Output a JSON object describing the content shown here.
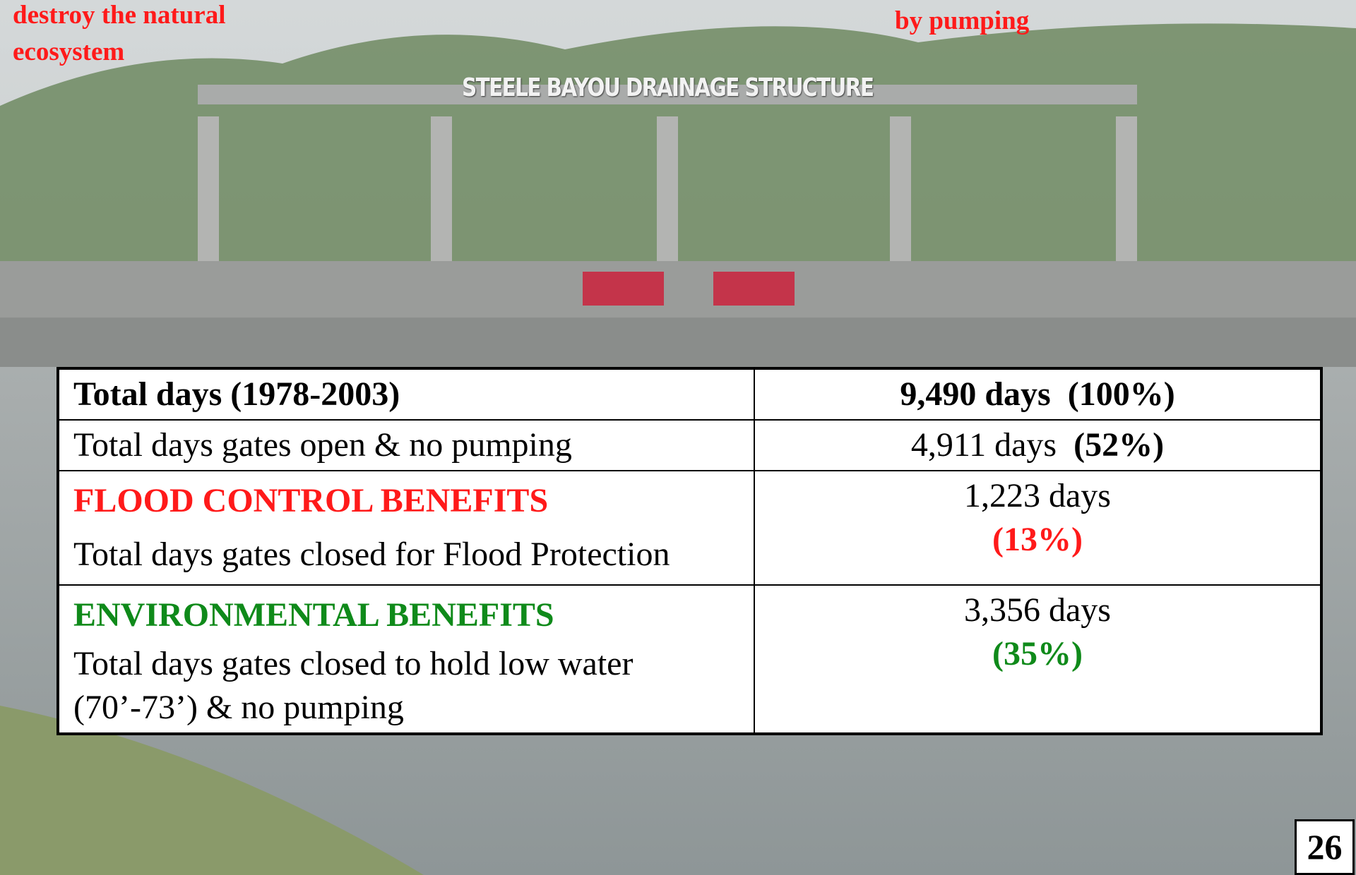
{
  "header": {
    "left_lines": [
      "destroy the natural",
      "ecosystem"
    ],
    "right": "by pumping"
  },
  "sign": "STEELE BAYOU DRAINAGE STRUCTURE",
  "table": {
    "rows": [
      {
        "label": "Total days (1978-2003)",
        "days": "9,490 days",
        "pct": "(100%)"
      },
      {
        "label": "Total days gates open & no pumping",
        "days": "4,911 days",
        "pct": "(52%)"
      },
      {
        "heading": "FLOOD CONTROL BENEFITS",
        "lines": [
          "Total days gates closed for Flood Protection"
        ],
        "days": "1,223 days",
        "pct": "(13%)"
      },
      {
        "heading": "ENVIRONMENTAL BENEFITS",
        "lines": [
          "Total days gates closed to hold low water",
          "(70’-73’) & no pumping"
        ],
        "days": "3,356 days",
        "pct": "(35%)"
      }
    ]
  },
  "page_number": "26"
}
